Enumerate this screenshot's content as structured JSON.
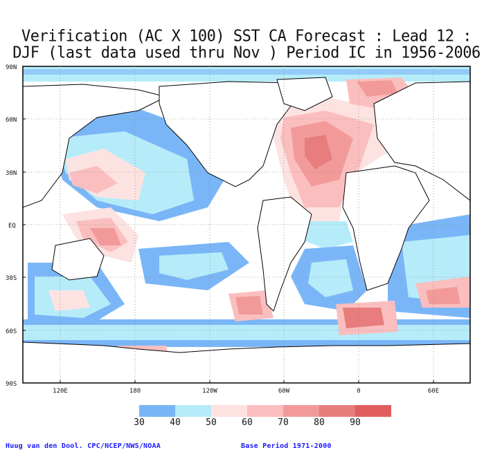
{
  "title": {
    "line1": "Verification (AC X 100) SST CA Forecast : Lead 12 :",
    "line2": "DJF (last data used thru Nov ) Period IC in 1956-2006"
  },
  "axes": {
    "lat_labels": [
      "90N",
      "60N",
      "30N",
      "EQ",
      "30S",
      "60S",
      "90S"
    ],
    "lon_labels": [
      "120E",
      "180",
      "120W",
      "60W",
      "0",
      "60E"
    ]
  },
  "legend": {
    "colors": [
      "#7ab6f7",
      "#b6ecf9",
      "#fde2e2",
      "#fbbebe",
      "#f29a9a",
      "#e77d7d",
      "#e05e5e"
    ],
    "labels": [
      "30",
      "40",
      "50",
      "60",
      "70",
      "80",
      "90"
    ]
  },
  "credits": {
    "left": "Huug van den Dool. CPC/NCEP/NWS/NOAA",
    "right": "Base Period 1971-2000"
  }
}
